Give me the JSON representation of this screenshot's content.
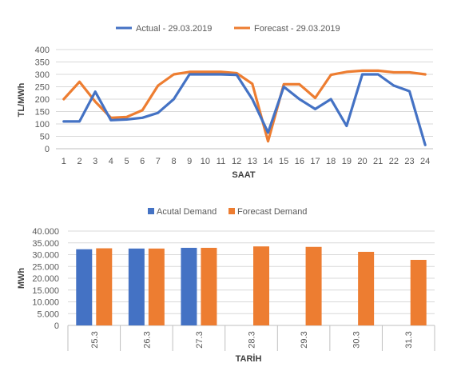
{
  "chart_data": [
    {
      "type": "line",
      "title": "",
      "xlabel": "SAAT",
      "ylabel": "TL/MWh",
      "ylim": [
        0,
        400
      ],
      "yticks": [
        0,
        50,
        100,
        150,
        200,
        250,
        300,
        350,
        400
      ],
      "x": [
        1,
        2,
        3,
        4,
        5,
        6,
        7,
        8,
        9,
        10,
        11,
        12,
        13,
        14,
        15,
        16,
        17,
        18,
        19,
        20,
        21,
        22,
        23,
        24
      ],
      "grid": true,
      "legend_position": "top",
      "series": [
        {
          "name": "Actual - 29.03.2019",
          "color": "#4472c4",
          "values": [
            110,
            110,
            230,
            115,
            118,
            125,
            145,
            200,
            300,
            300,
            300,
            298,
            200,
            65,
            250,
            200,
            160,
            200,
            92,
            300,
            300,
            255,
            232,
            15
          ]
        },
        {
          "name": "Forecast - 29.03.2019",
          "color": "#ed7d31",
          "values": [
            200,
            270,
            190,
            125,
            128,
            155,
            255,
            300,
            310,
            310,
            310,
            305,
            262,
            30,
            260,
            260,
            205,
            298,
            310,
            315,
            315,
            308,
            308,
            300
          ]
        }
      ]
    },
    {
      "type": "bar",
      "title": "",
      "xlabel": "TARİH",
      "ylabel": "MWh",
      "ylim": [
        0,
        40000
      ],
      "yticks": [
        "0",
        "5.000",
        "10.000",
        "15.000",
        "20.000",
        "25.000",
        "30.000",
        "35.000",
        "40.000"
      ],
      "categories": [
        "25.3",
        "26.3",
        "27.3",
        "28.3",
        "29.3",
        "30.3",
        "31.3"
      ],
      "grid": true,
      "legend_position": "top",
      "series": [
        {
          "name": "Acutal Demand",
          "color": "#4472c4",
          "values": [
            32300,
            32600,
            32900,
            null,
            null,
            null,
            null
          ]
        },
        {
          "name": "Forecast Demand",
          "color": "#ed7d31",
          "values": [
            32700,
            32600,
            32900,
            33500,
            33300,
            31200,
            27800
          ]
        }
      ]
    }
  ]
}
